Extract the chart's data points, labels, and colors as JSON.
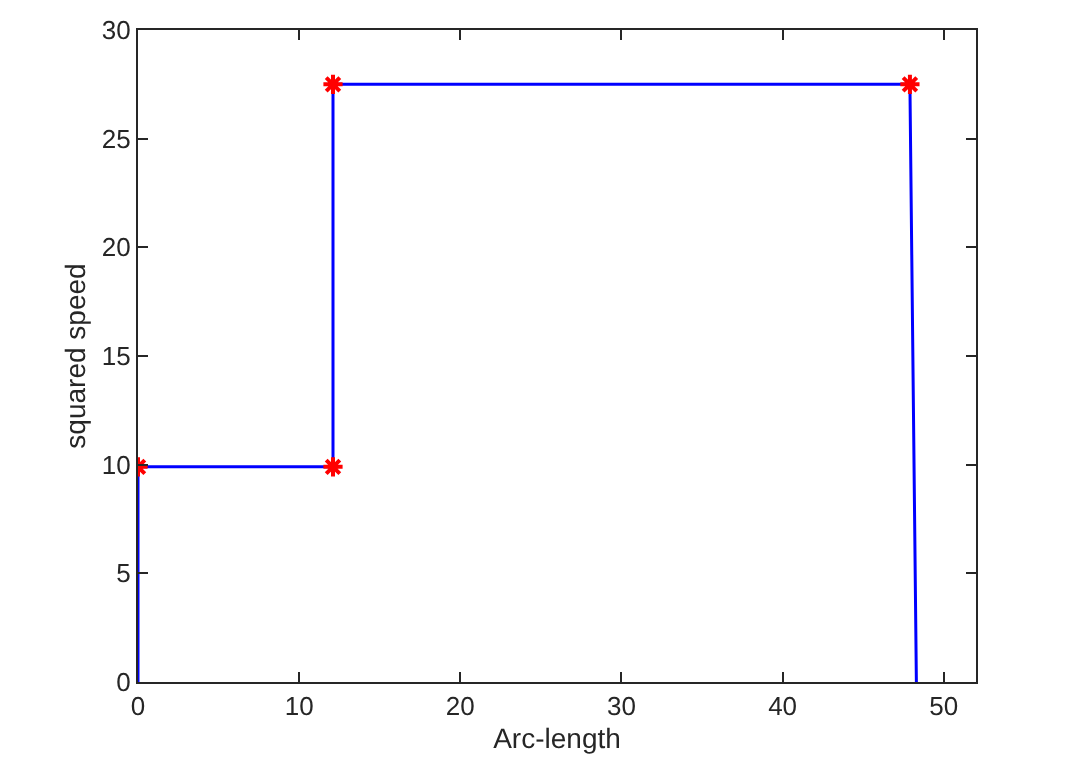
{
  "chart_data": {
    "type": "line",
    "xlabel": "Arc-length",
    "ylabel": "squared speed",
    "xlim": [
      0,
      52
    ],
    "xticks": [
      0,
      10,
      20,
      30,
      40,
      50
    ],
    "ylim": [
      0,
      30
    ],
    "yticks": [
      0,
      5,
      10,
      15,
      20,
      25,
      30
    ],
    "series": [
      {
        "color": "#0000ff",
        "marker": "none",
        "x": [
          0,
          0,
          12.1,
          12.1,
          47.9,
          48.3
        ],
        "values": [
          0,
          9.9,
          9.9,
          27.5,
          27.5,
          0
        ]
      },
      {
        "type": "scatter",
        "color": "#ff0000",
        "marker": "cross",
        "x": [
          0,
          12.1,
          12.1,
          47.9
        ],
        "values": [
          9.9,
          9.9,
          27.5,
          27.5
        ]
      }
    ]
  }
}
